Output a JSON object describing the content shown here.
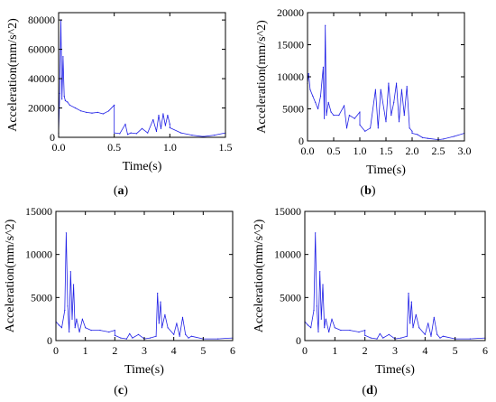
{
  "colors": {
    "series": "#1f1fe6",
    "axis": "#000000"
  },
  "chart_data": [
    {
      "type": "line",
      "panel_label": "a",
      "xlabel": "Time(s)",
      "ylabel": "Acceleration(mm/s^2)",
      "xlim": [
        0,
        1.5
      ],
      "ylim": [
        0,
        85000
      ],
      "xticks": [
        0,
        0.5,
        1,
        1.5
      ],
      "xtick_labels": [
        "0.0",
        "0.5",
        "1.0",
        "1.5"
      ],
      "yticks": [
        0,
        20000,
        40000,
        60000,
        80000
      ],
      "ytick_labels": [
        "0",
        "20000",
        "40000",
        "60000",
        "80000"
      ],
      "series": [
        {
          "x": [
            0,
            0.01,
            0.02,
            0.03,
            0.04,
            0.05,
            0.06,
            0.08,
            0.1,
            0.15,
            0.2,
            0.25,
            0.3,
            0.35,
            0.4,
            0.45,
            0.5,
            0.5,
            0.55,
            0.6,
            0.62,
            0.65,
            0.7,
            0.75,
            0.8,
            0.85,
            0.88,
            0.9,
            0.92,
            0.94,
            0.96,
            0.98,
            1.0,
            1.0,
            1.1,
            1.2,
            1.3,
            1.4,
            1.5
          ],
          "y": [
            3000,
            30000,
            80000,
            26000,
            55000,
            28000,
            25000,
            24000,
            22000,
            20000,
            18000,
            17000,
            16500,
            17000,
            16000,
            18000,
            22000,
            3000,
            2500,
            9000,
            2000,
            3000,
            2500,
            6000,
            3000,
            12000,
            4000,
            15000,
            6000,
            16000,
            8000,
            15000,
            9000,
            6500,
            3000,
            1500,
            500,
            1500,
            3000
          ]
        }
      ]
    },
    {
      "type": "line",
      "panel_label": "b",
      "xlabel": "Time(s)",
      "ylabel": "Acceleration(mm/s^2)",
      "xlim": [
        0,
        3.0
      ],
      "ylim": [
        0,
        20000
      ],
      "xticks": [
        0,
        0.5,
        1,
        1.5,
        2,
        2.5,
        3
      ],
      "xtick_labels": [
        "0.0",
        "0.5",
        "1.0",
        "1.5",
        "2.0",
        "2.5",
        "3.0"
      ],
      "yticks": [
        0,
        5000,
        10000,
        15000,
        20000
      ],
      "ytick_labels": [
        "0",
        "5000",
        "10000",
        "15000",
        "20000"
      ],
      "series": [
        {
          "x": [
            0,
            0.02,
            0.05,
            0.1,
            0.15,
            0.2,
            0.25,
            0.3,
            0.32,
            0.34,
            0.36,
            0.4,
            0.45,
            0.5,
            0.6,
            0.7,
            0.75,
            0.8,
            0.9,
            1.0,
            1.0,
            1.1,
            1.2,
            1.3,
            1.35,
            1.4,
            1.5,
            1.55,
            1.6,
            1.65,
            1.7,
            1.75,
            1.8,
            1.85,
            1.9,
            1.95,
            2.0,
            2.0,
            2.1,
            2.2,
            2.3,
            2.5,
            2.6,
            2.8,
            3.0
          ],
          "y": [
            9000,
            10500,
            8000,
            7000,
            6000,
            5000,
            7000,
            11500,
            3500,
            18000,
            4000,
            6000,
            4500,
            4000,
            4000,
            5500,
            2000,
            4000,
            3500,
            4500,
            2500,
            1500,
            2000,
            8000,
            2000,
            8000,
            3000,
            9000,
            4000,
            6000,
            9000,
            3000,
            8000,
            4000,
            8500,
            2000,
            1500,
            1200,
            1000,
            500,
            400,
            200,
            300,
            700,
            1200
          ]
        }
      ]
    },
    {
      "type": "line",
      "panel_label": "c",
      "xlabel": "Time(s)",
      "ylabel": "Acceleration(mm/s^2)",
      "xlim": [
        0,
        6
      ],
      "ylim": [
        0,
        15000
      ],
      "xticks": [
        0,
        1,
        2,
        3,
        4,
        5,
        6
      ],
      "xtick_labels": [
        "0",
        "1",
        "2",
        "3",
        "4",
        "5",
        "6"
      ],
      "yticks": [
        0,
        5000,
        10000,
        15000
      ],
      "ytick_labels": [
        "0",
        "5000",
        "10000",
        "15000"
      ],
      "series": [
        {
          "x": [
            0,
            0.1,
            0.2,
            0.3,
            0.35,
            0.4,
            0.45,
            0.5,
            0.55,
            0.6,
            0.65,
            0.7,
            0.8,
            0.9,
            1.0,
            1.2,
            1.5,
            1.8,
            2.0,
            2.0,
            2.2,
            2.4,
            2.5,
            2.6,
            2.8,
            3.0,
            3.2,
            3.4,
            3.45,
            3.5,
            3.55,
            3.6,
            3.7,
            3.8,
            4.0,
            4.1,
            4.2,
            4.3,
            4.4,
            4.5,
            4.6,
            5.0,
            5.5,
            6.0
          ],
          "y": [
            2200,
            1800,
            1500,
            3500,
            12500,
            4000,
            1000,
            8000,
            2500,
            6500,
            1500,
            2500,
            1000,
            2500,
            1500,
            1200,
            1200,
            1000,
            1200,
            600,
            300,
            200,
            800,
            300,
            700,
            200,
            300,
            500,
            5500,
            2000,
            4500,
            1500,
            3000,
            1500,
            700,
            2000,
            500,
            2700,
            700,
            300,
            500,
            200,
            200,
            300
          ]
        }
      ]
    },
    {
      "type": "line",
      "panel_label": "d",
      "xlabel": "Time(s)",
      "ylabel": "Acceleration(mm/s^2)",
      "xlim": [
        0,
        6
      ],
      "ylim": [
        0,
        15000
      ],
      "xticks": [
        0,
        1,
        2,
        3,
        4,
        5,
        6
      ],
      "xtick_labels": [
        "0",
        "1",
        "2",
        "3",
        "4",
        "5",
        "6"
      ],
      "yticks": [
        0,
        5000,
        10000,
        15000
      ],
      "ytick_labels": [
        "0",
        "5000",
        "10000",
        "15000"
      ],
      "series": [
        {
          "x": [
            0,
            0.1,
            0.2,
            0.3,
            0.35,
            0.4,
            0.45,
            0.5,
            0.55,
            0.6,
            0.65,
            0.7,
            0.8,
            0.9,
            1.0,
            1.2,
            1.5,
            1.8,
            2.0,
            2.0,
            2.2,
            2.4,
            2.5,
            2.6,
            2.8,
            3.0,
            3.2,
            3.4,
            3.45,
            3.5,
            3.55,
            3.6,
            3.7,
            3.8,
            4.0,
            4.1,
            4.2,
            4.3,
            4.4,
            4.5,
            4.6,
            5.0,
            5.5,
            6.0
          ],
          "y": [
            2200,
            1800,
            1500,
            3500,
            12500,
            4000,
            1000,
            8000,
            2500,
            6500,
            1500,
            2500,
            1000,
            2500,
            1500,
            1200,
            1200,
            1000,
            1200,
            600,
            300,
            200,
            800,
            300,
            700,
            200,
            300,
            500,
            5500,
            2000,
            4500,
            1500,
            3000,
            1500,
            700,
            2000,
            500,
            2700,
            700,
            300,
            500,
            200,
            200,
            300
          ]
        }
      ]
    }
  ]
}
